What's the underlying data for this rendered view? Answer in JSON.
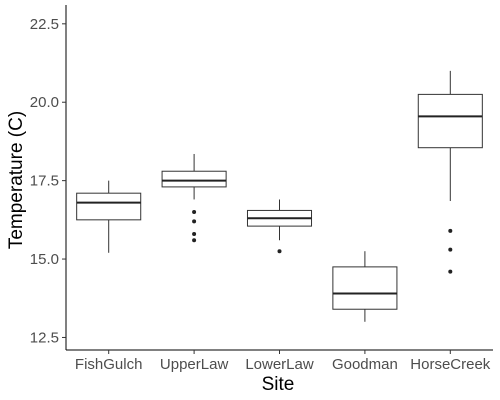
{
  "chart_data": {
    "type": "boxplot",
    "title": "",
    "xlabel": "Site",
    "ylabel": "Temperature (C)",
    "ylim": [
      12.1,
      23.1
    ],
    "yticks": [
      12.5,
      15.0,
      17.5,
      20.0,
      22.5
    ],
    "ytick_labels": [
      "12.5",
      "15.0",
      "17.5",
      "20.0",
      "22.5"
    ],
    "grid": false,
    "categories": [
      "FishGulch",
      "UpperLaw",
      "LowerLaw",
      "Goodman",
      "HorseCreek"
    ],
    "boxes": [
      {
        "category": "FishGulch",
        "lower_whisker": 15.2,
        "q1": 16.25,
        "median": 16.8,
        "q3": 17.1,
        "upper_whisker": 17.5,
        "outliers": []
      },
      {
        "category": "UpperLaw",
        "lower_whisker": 16.9,
        "q1": 17.3,
        "median": 17.5,
        "q3": 17.8,
        "upper_whisker": 18.35,
        "outliers": [
          16.5,
          16.2,
          15.8,
          15.6
        ]
      },
      {
        "category": "LowerLaw",
        "lower_whisker": 15.6,
        "q1": 16.05,
        "median": 16.3,
        "q3": 16.55,
        "upper_whisker": 16.9,
        "outliers": [
          15.25
        ]
      },
      {
        "category": "Goodman",
        "lower_whisker": 13.0,
        "q1": 13.4,
        "median": 13.9,
        "q3": 14.75,
        "upper_whisker": 15.25,
        "outliers": []
      },
      {
        "category": "HorseCreek",
        "lower_whisker": 16.85,
        "q1": 18.55,
        "median": 19.55,
        "q3": 20.25,
        "upper_whisker": 21.0,
        "outliers": [
          15.9,
          15.3,
          14.6
        ]
      }
    ]
  }
}
